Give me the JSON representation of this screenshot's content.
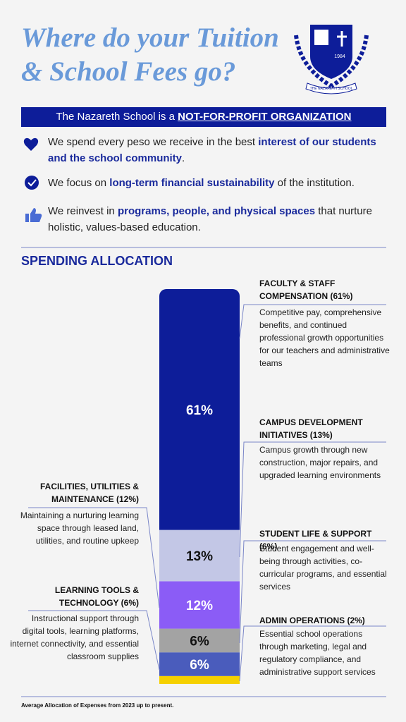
{
  "header": {
    "title": [
      "Where do your Tuition",
      "& School Fees go?"
    ],
    "logo": {
      "year": "1984",
      "name": "THE NAZARETH SCHOOL"
    }
  },
  "banner": {
    "parts": [
      "The Nazareth School is a ",
      "NOT-FOR-PROFIT ORGANIZATION"
    ]
  },
  "bullets": [
    {
      "parts": [
        "We spend every peso we receive in the best ",
        "interest of our students and the school community",
        "."
      ]
    },
    {
      "parts": [
        "We focus on ",
        "long-term financial sustainability",
        " of the institution."
      ]
    },
    {
      "parts": [
        "We reinvest in ",
        "programs, people, and physical spaces",
        " that nurture holistic, values-based education."
      ]
    }
  ],
  "section_title": "SPENDING ALLOCATION",
  "chart_data": {
    "type": "stacked-bar",
    "categories": [
      "FACULTY & STAFF COMPENSATION (61%)",
      "CAMPUS DEVELOPMENT INITIATIVES (13%)",
      "FACILITIES, UTILITIES & MAINTENANCE (12%)",
      "STUDENT LIFE & SUPPORT (6%)",
      "LEARNING TOOLS & TECHNOLOGY (6%)",
      "ADMIN OPERATIONS (2%)"
    ],
    "descriptions": [
      "Competitive pay, comprehensive benefits, and continued professional growth opportunities for our teachers and administrative teams",
      "Campus growth through new construction, major repairs, and upgraded learning environments",
      "Maintaining a nurturing learning space through leased land, utilities, and routine upkeep",
      "Student engagement and well-being through activities, co-curricular programs, and essential services",
      "Instructional support through digital tools, learning platforms, internet connectivity, and essential classroom supplies",
      "Essential school operations through marketing, legal and regulatory compliance, and administrative support services"
    ],
    "values": [
      61,
      13,
      12,
      6,
      6,
      2
    ],
    "value_labels": [
      "61%",
      "13%",
      "12%",
      "6%",
      "6%",
      null
    ],
    "colors": [
      "#0d1d99",
      "#c3c7e6",
      "#8b5cf6",
      "#a3a3a3",
      "#4a5cbc",
      "#f5d000"
    ]
  },
  "footer": "Average Allocation of Expenses from 2023 up to present."
}
